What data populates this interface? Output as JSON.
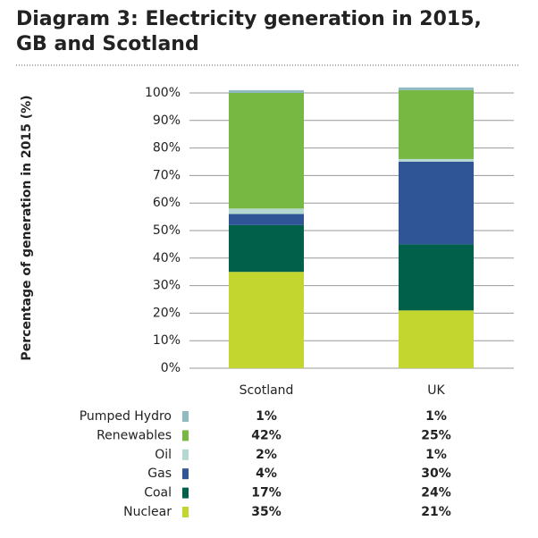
{
  "chart_data": {
    "type": "stacked_bar",
    "title": "Diagram 3: Electricity generation in 2015, GB and Scotland",
    "y_label": "Percentage of generation in 2015 (%)",
    "categories": [
      "Scotland",
      "UK"
    ],
    "series": [
      {
        "name": "Nuclear",
        "color": "#c3d62f",
        "values": [
          35,
          21
        ],
        "value_labels": [
          "35%",
          "21%"
        ]
      },
      {
        "name": "Coal",
        "color": "#00604a",
        "values": [
          17,
          24
        ],
        "value_labels": [
          "17%",
          "24%"
        ]
      },
      {
        "name": "Gas",
        "color": "#2f5597",
        "values": [
          4,
          30
        ],
        "value_labels": [
          "4%",
          "30%"
        ]
      },
      {
        "name": "Oil",
        "color": "#b5d8d2",
        "values": [
          2,
          1
        ],
        "value_labels": [
          "2%",
          "1%"
        ]
      },
      {
        "name": "Renewables",
        "color": "#77b843",
        "values": [
          42,
          25
        ],
        "value_labels": [
          "42%",
          "25%"
        ]
      },
      {
        "name": "Pumped Hydro",
        "color": "#8fbabf",
        "values": [
          1,
          1
        ],
        "value_labels": [
          "1%",
          "1%"
        ]
      }
    ],
    "ylim": [
      0,
      100
    ],
    "yticks": [
      {
        "value": 0,
        "label": "0%"
      },
      {
        "value": 10,
        "label": "10%"
      },
      {
        "value": 20,
        "label": "20%"
      },
      {
        "value": 30,
        "label": "30%"
      },
      {
        "value": 40,
        "label": "40%"
      },
      {
        "value": 50,
        "label": "50%"
      },
      {
        "value": 60,
        "label": "60%"
      },
      {
        "value": 70,
        "label": "70%"
      },
      {
        "value": 80,
        "label": "80%"
      },
      {
        "value": 90,
        "label": "90%"
      },
      {
        "value": 100,
        "label": "100%"
      }
    ],
    "grid": true
  }
}
